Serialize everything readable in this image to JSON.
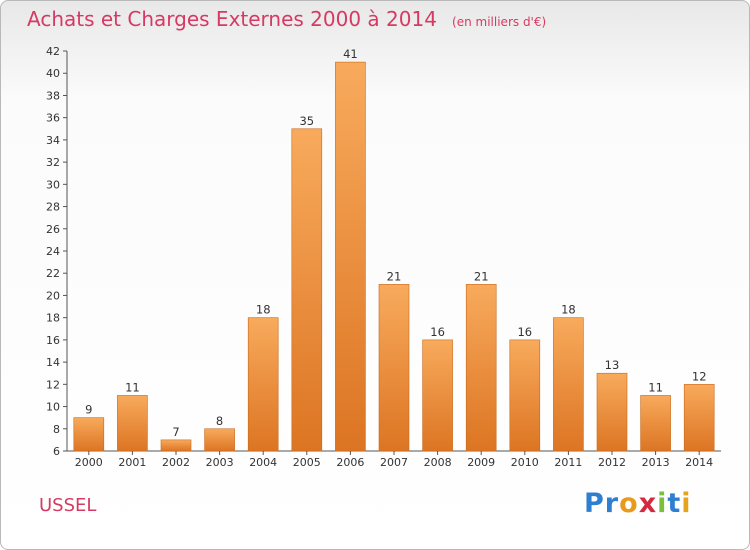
{
  "title": "Achats et Charges Externes 2000 à 2014",
  "subtitle": "(en milliers d'€)",
  "commune": "USSEL",
  "logo": {
    "letters": [
      "P",
      "r",
      "o",
      "x",
      "i",
      "t",
      "i"
    ],
    "colors": [
      "#2f7fd1",
      "#2f7fd1",
      "#e89a1c",
      "#d4293f",
      "#7bbf3a",
      "#2f7fd1",
      "#e8a31c"
    ]
  },
  "colors": {
    "title": "#d63a63",
    "bar_top": "#f8aa5c",
    "bar_bottom": "#dc7523",
    "bar_edge": "#c96a1c"
  },
  "chart_data": {
    "type": "bar",
    "title": "Achats et Charges Externes 2000 à 2014",
    "subtitle": "(en milliers d'€)",
    "xlabel": "",
    "ylabel": "",
    "categories": [
      "2000",
      "2001",
      "2002",
      "2003",
      "2004",
      "2005",
      "2006",
      "2007",
      "2008",
      "2009",
      "2010",
      "2011",
      "2012",
      "2013",
      "2014"
    ],
    "values": [
      9,
      11,
      7,
      8,
      18,
      35,
      41,
      21,
      16,
      21,
      16,
      18,
      13,
      11,
      12
    ],
    "ylim": [
      6,
      42
    ],
    "yticks": [
      6,
      8,
      10,
      12,
      14,
      16,
      18,
      20,
      22,
      24,
      26,
      28,
      30,
      32,
      34,
      36,
      38,
      40,
      42
    ],
    "grid": false,
    "legend": "none"
  }
}
